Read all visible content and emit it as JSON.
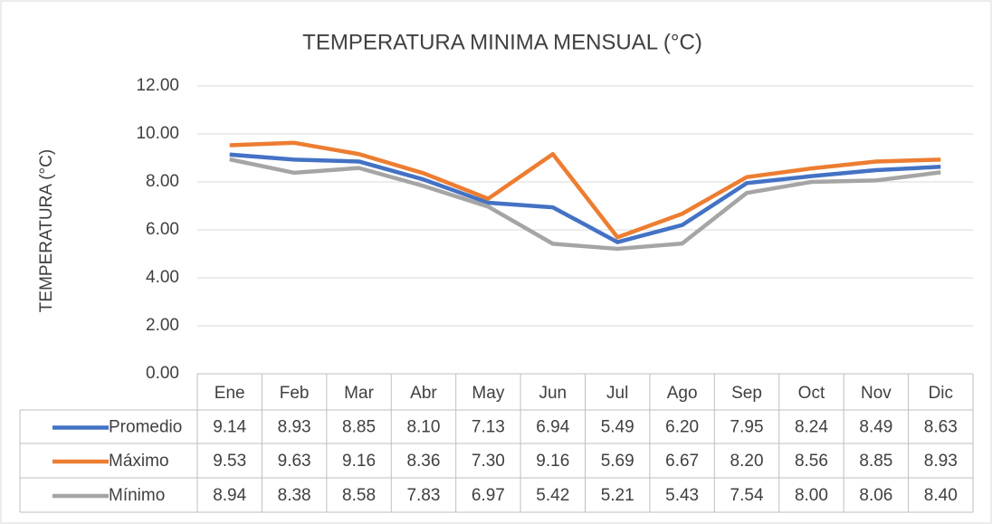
{
  "chart_data": {
    "type": "line",
    "title": "TEMPERATURA MINIMA MENSUAL (°C)",
    "y_label": "TEMPERATURA (°C)",
    "categories": [
      "Ene",
      "Feb",
      "Mar",
      "Abr",
      "May",
      "Jun",
      "Jul",
      "Ago",
      "Sep",
      "Oct",
      "Nov",
      "Dic"
    ],
    "series": [
      {
        "name": "Promedio",
        "color": "#4472c4",
        "values": [
          9.14,
          8.93,
          8.85,
          8.1,
          7.13,
          6.94,
          5.49,
          6.2,
          7.95,
          8.24,
          8.49,
          8.63
        ],
        "value_labels": [
          "9.14",
          "8.93",
          "8.85",
          "8.10",
          "7.13",
          "6.94",
          "5.49",
          "6.20",
          "7.95",
          "8.24",
          "8.49",
          "8.63"
        ]
      },
      {
        "name": "Máximo",
        "color": "#ed7d31",
        "values": [
          9.53,
          9.63,
          9.16,
          8.36,
          7.3,
          9.16,
          5.69,
          6.67,
          8.2,
          8.56,
          8.85,
          8.93
        ],
        "value_labels": [
          "9.53",
          "9.63",
          "9.16",
          "8.36",
          "7.30",
          "9.16",
          "5.69",
          "6.67",
          "8.20",
          "8.56",
          "8.85",
          "8.93"
        ]
      },
      {
        "name": "Mínimo",
        "color": "#a5a5a5",
        "values": [
          8.94,
          8.38,
          8.58,
          7.83,
          6.97,
          5.42,
          5.21,
          5.43,
          7.54,
          8.0,
          8.06,
          8.4
        ],
        "value_labels": [
          "8.94",
          "8.38",
          "8.58",
          "7.83",
          "6.97",
          "5.42",
          "5.21",
          "5.43",
          "7.54",
          "8.00",
          "8.06",
          "8.40"
        ]
      }
    ],
    "ylim": [
      0,
      12
    ],
    "yticks": [
      {
        "value": 0,
        "label": "0.00"
      },
      {
        "value": 2,
        "label": "2.00"
      },
      {
        "value": 4,
        "label": "4.00"
      },
      {
        "value": 6,
        "label": "6.00"
      },
      {
        "value": 8,
        "label": "8.00"
      },
      {
        "value": 10,
        "label": "10.00"
      },
      {
        "value": 12,
        "label": "12.00"
      }
    ],
    "grid": true
  }
}
